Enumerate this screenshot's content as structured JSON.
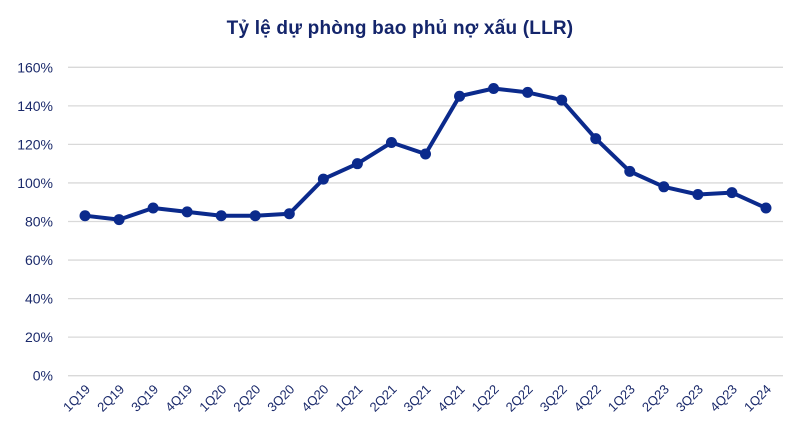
{
  "chart_data": {
    "type": "line",
    "title": "Tỷ lệ dự phòng bao phủ nợ xấu (LLR)",
    "xlabel": "",
    "ylabel": "",
    "ylim": [
      0,
      160
    ],
    "yticks": [
      "0%",
      "20%",
      "40%",
      "60%",
      "80%",
      "100%",
      "120%",
      "140%",
      "160%"
    ],
    "ytick_values": [
      0,
      20,
      40,
      60,
      80,
      100,
      120,
      140,
      160
    ],
    "grid": true,
    "legend": "none",
    "categories": [
      "1Q19",
      "2Q19",
      "3Q19",
      "4Q19",
      "1Q20",
      "2Q20",
      "3Q20",
      "4Q20",
      "1Q21",
      "2Q21",
      "3Q21",
      "4Q21",
      "1Q22",
      "2Q22",
      "3Q22",
      "4Q22",
      "1Q23",
      "2Q23",
      "3Q23",
      "4Q23",
      "1Q24"
    ],
    "series": [
      {
        "name": "LLR",
        "color": "#0b2a8c",
        "values": [
          83,
          81,
          87,
          85,
          83,
          83,
          84,
          102,
          110,
          121,
          115,
          145,
          149,
          147,
          143,
          123,
          106,
          98,
          94,
          95,
          87
        ]
      }
    ]
  },
  "colors": {
    "title": "#14256b",
    "tick_labels": "#1b2a6b",
    "gridline": "#d9d9d9",
    "line": "#0b2a8c"
  }
}
